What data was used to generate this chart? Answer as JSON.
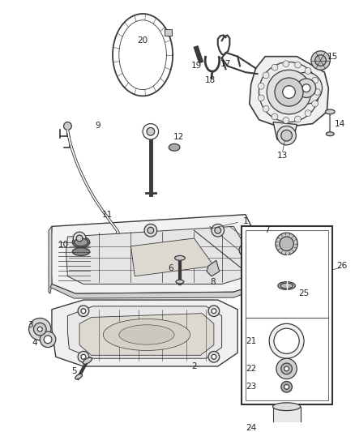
{
  "background_color": "#ffffff",
  "fig_width": 4.38,
  "fig_height": 5.33,
  "dpi": 100,
  "line_color": "#3a3a3a",
  "label_color": "#222222",
  "label_fontsize": 7.5,
  "line_width": 0.9
}
